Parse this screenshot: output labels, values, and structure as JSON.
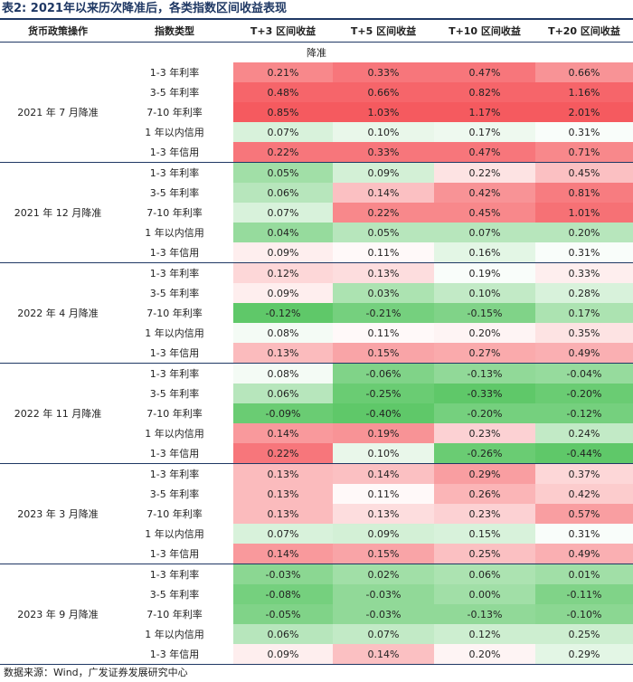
{
  "title": "表2: 2021年以来历次降准后，各类指数区间收益表现",
  "table": {
    "headers": [
      "货币政策操作",
      "指数类型",
      "T+3 区间收益",
      "T+5 区间收益",
      "T+10 区间收益",
      "T+20 区间收益"
    ],
    "section": "降准",
    "groups": [
      {
        "name": "2021 年 7 月降准",
        "rows": [
          [
            "1-3 年利率",
            "0.21%",
            "0.33%",
            "0.47%",
            "0.66%"
          ],
          [
            "3-5 年利率",
            "0.48%",
            "0.66%",
            "0.82%",
            "1.16%"
          ],
          [
            "7-10 年利率",
            "0.85%",
            "1.03%",
            "1.17%",
            "2.01%"
          ],
          [
            "1 年以内信用",
            "0.07%",
            "0.10%",
            "0.17%",
            "0.31%"
          ],
          [
            "1-3 年信用",
            "0.22%",
            "0.33%",
            "0.47%",
            "0.71%"
          ]
        ]
      },
      {
        "name": "2021 年 12 月降准",
        "rows": [
          [
            "1-3 年利率",
            "0.05%",
            "0.09%",
            "0.22%",
            "0.45%"
          ],
          [
            "3-5 年利率",
            "0.06%",
            "0.14%",
            "0.42%",
            "0.81%"
          ],
          [
            "7-10 年利率",
            "0.07%",
            "0.22%",
            "0.45%",
            "1.01%"
          ],
          [
            "1 年以内信用",
            "0.04%",
            "0.05%",
            "0.07%",
            "0.20%"
          ],
          [
            "1-3 年信用",
            "0.09%",
            "0.11%",
            "0.16%",
            "0.31%"
          ]
        ]
      },
      {
        "name": "2022 年 4 月降准",
        "rows": [
          [
            "1-3 年利率",
            "0.12%",
            "0.13%",
            "0.19%",
            "0.33%"
          ],
          [
            "3-5 年利率",
            "0.09%",
            "0.03%",
            "0.10%",
            "0.28%"
          ],
          [
            "7-10 年利率",
            "-0.12%",
            "-0.21%",
            "-0.15%",
            "0.17%"
          ],
          [
            "1 年以内信用",
            "0.08%",
            "0.11%",
            "0.20%",
            "0.35%"
          ],
          [
            "1-3 年信用",
            "0.13%",
            "0.15%",
            "0.27%",
            "0.49%"
          ]
        ]
      },
      {
        "name": "2022 年 11 月降准",
        "rows": [
          [
            "1-3 年利率",
            "0.08%",
            "-0.06%",
            "-0.13%",
            "-0.04%"
          ],
          [
            "3-5 年利率",
            "0.06%",
            "-0.25%",
            "-0.33%",
            "-0.20%"
          ],
          [
            "7-10 年利率",
            "-0.09%",
            "-0.40%",
            "-0.20%",
            "-0.12%"
          ],
          [
            "1 年以内信用",
            "0.14%",
            "0.19%",
            "0.23%",
            "0.24%"
          ],
          [
            "1-3 年信用",
            "0.22%",
            "0.10%",
            "-0.26%",
            "-0.44%"
          ]
        ]
      },
      {
        "name": "2023 年 3 月降准",
        "rows": [
          [
            "1-3 年利率",
            "0.13%",
            "0.14%",
            "0.29%",
            "0.37%"
          ],
          [
            "3-5 年利率",
            "0.13%",
            "0.11%",
            "0.26%",
            "0.42%"
          ],
          [
            "7-10 年利率",
            "0.13%",
            "0.13%",
            "0.23%",
            "0.57%"
          ],
          [
            "1 年以内信用",
            "0.07%",
            "0.09%",
            "0.15%",
            "0.31%"
          ],
          [
            "1-3 年信用",
            "0.14%",
            "0.15%",
            "0.25%",
            "0.49%"
          ]
        ]
      },
      {
        "name": "2023 年 9 月降准",
        "rows": [
          [
            "1-3 年利率",
            "-0.03%",
            "0.02%",
            "0.06%",
            "0.01%"
          ],
          [
            "3-5 年利率",
            "-0.08%",
            "-0.03%",
            "0.00%",
            "-0.11%"
          ],
          [
            "7-10 年利率",
            "-0.05%",
            "-0.03%",
            "-0.13%",
            "-0.10%"
          ],
          [
            "1 年以内信用",
            "0.06%",
            "0.07%",
            "0.12%",
            "0.25%"
          ],
          [
            "1-3 年信用",
            "0.09%",
            "0.14%",
            "0.20%",
            "0.29%"
          ]
        ]
      }
    ]
  },
  "source": "数据来源：Wind，广发证券发展研究中心"
}
